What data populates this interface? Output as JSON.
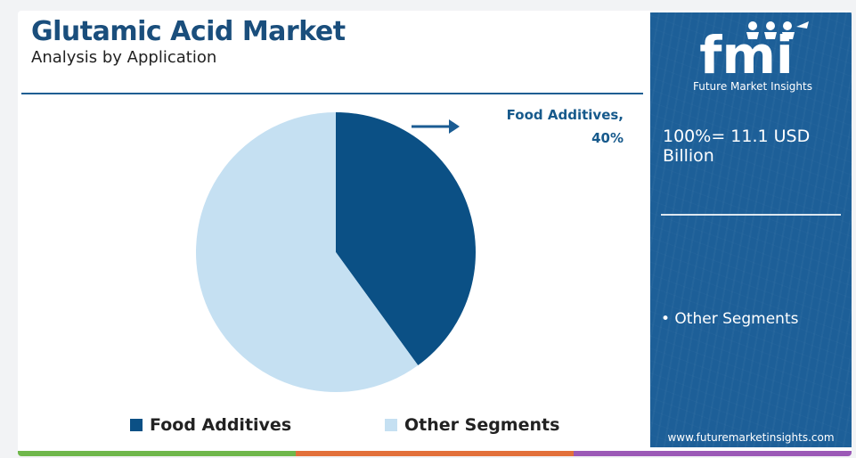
{
  "header": {
    "title": "Glutamic Acid Market",
    "subtitle": "Analysis by Application"
  },
  "callout": {
    "line1": "Food Additives,",
    "line2": "40%"
  },
  "legend": {
    "food": "Food Additives",
    "other": "Other Segments"
  },
  "side_panel": {
    "logo_text": "fmi",
    "logo_caption": "Future Market Insights",
    "total": "100%= 11.1 USD Billion",
    "item": "• Other Segments",
    "website": "www.futuremarketinsights.com"
  },
  "colors": {
    "food_additives": "#0b5085",
    "other_segments": "#c5e0f2",
    "panel": "#1d5f98",
    "title": "#1a4e7c",
    "bar": [
      "#6fb74b",
      "#e2703a",
      "#9b59b6"
    ]
  },
  "chart_data": {
    "type": "pie",
    "title": "Glutamic Acid Market",
    "subtitle": "Analysis by Application",
    "total_label": "100%= 11.1 USD Billion",
    "slices": [
      {
        "label": "Food Additives",
        "value": 40,
        "color": "#0b5085"
      },
      {
        "label": "Other Segments",
        "value": 60,
        "color": "#c5e0f2"
      }
    ],
    "legend_position": "bottom"
  }
}
